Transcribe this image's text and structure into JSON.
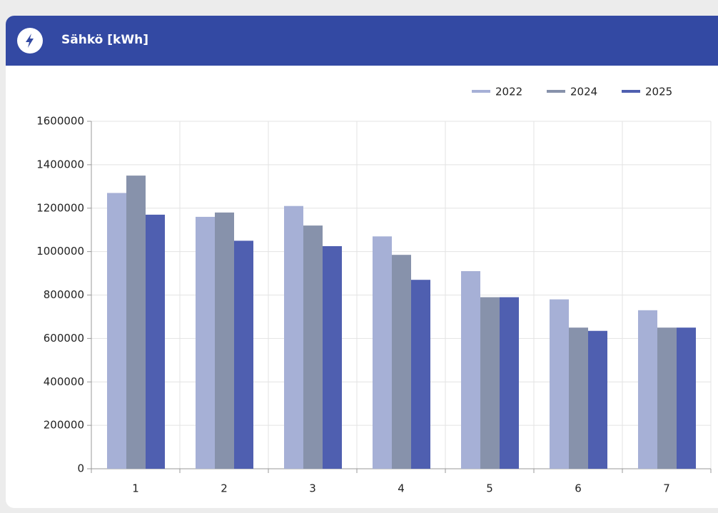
{
  "chart_data": {
    "type": "bar",
    "title": "Sähkö [kWh]",
    "categories": [
      "1",
      "2",
      "3",
      "4",
      "5",
      "6",
      "7"
    ],
    "series": [
      {
        "name": "2022",
        "color": "#a6b0d6",
        "values": [
          1270000,
          1160000,
          1210000,
          1070000,
          910000,
          780000,
          730000
        ]
      },
      {
        "name": "2024",
        "color": "#8792ab",
        "values": [
          1350000,
          1180000,
          1120000,
          985000,
          790000,
          650000,
          650000
        ]
      },
      {
        "name": "2025",
        "color": "#4f5fb0",
        "values": [
          1170000,
          1050000,
          1025000,
          870000,
          790000,
          635000,
          650000
        ]
      }
    ],
    "ylim": [
      0,
      1600000
    ],
    "yticks": [
      0,
      200000,
      400000,
      600000,
      800000,
      1000000,
      1200000,
      1400000,
      1600000
    ],
    "grid": true,
    "legend": "top-right"
  }
}
